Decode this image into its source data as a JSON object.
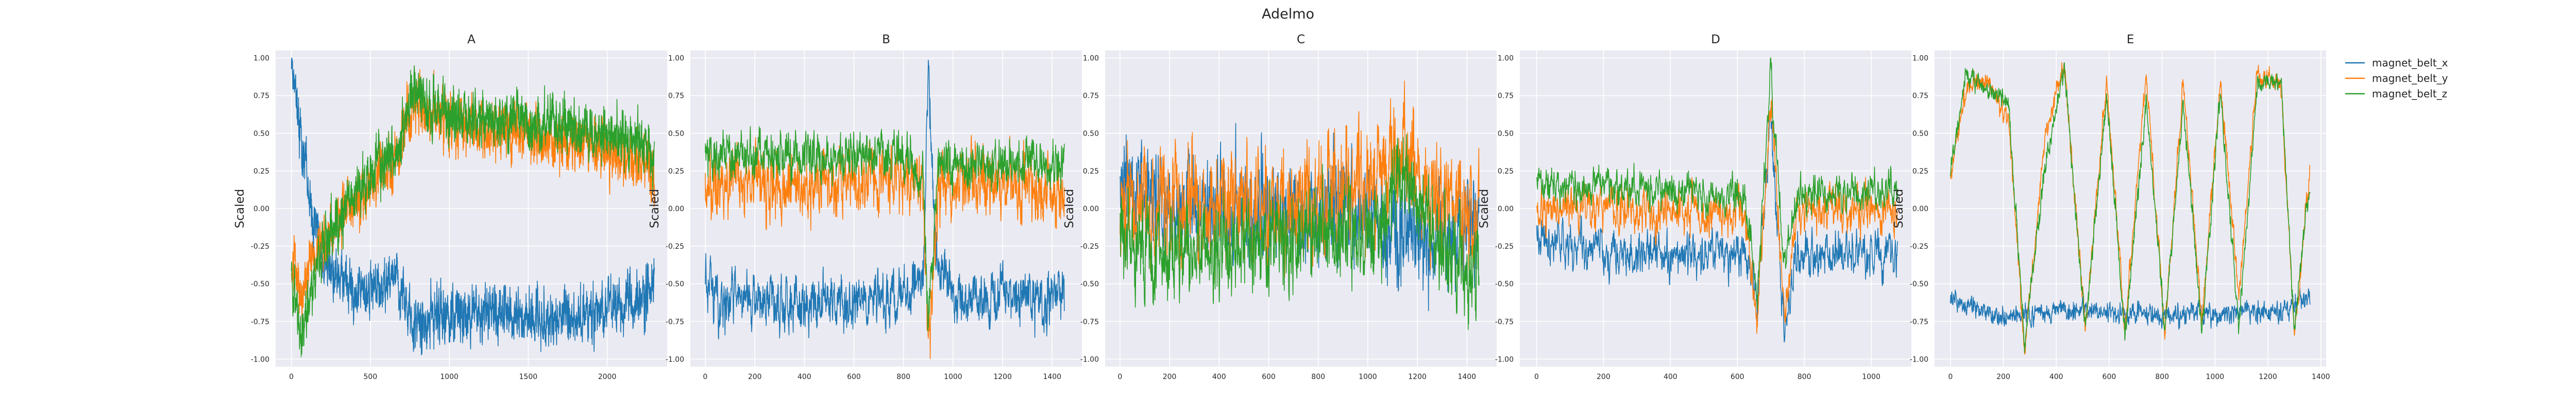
{
  "chart_data": {
    "type": "line",
    "title": "Adelmo",
    "series_names": [
      "magnet_belt_x",
      "magnet_belt_y",
      "magnet_belt_z"
    ],
    "colors": [
      "#1f77b4",
      "#ff7f0e",
      "#2ca02c"
    ],
    "legend_position": "right",
    "grid": true,
    "background": "#eaeaf2",
    "panels": [
      {
        "title": "A",
        "ylabel": "Scaled",
        "xlim": [
          -100,
          2380
        ],
        "ylim": [
          -1.05,
          1.05
        ],
        "xticks": [
          0,
          500,
          1000,
          1500,
          2000
        ],
        "yticks": [
          -1.0,
          -0.75,
          -0.5,
          -0.25,
          0.0,
          0.25,
          0.5,
          0.75,
          1.0
        ],
        "n": 2300,
        "seed": 11,
        "series": [
          {
            "name": "magnet_belt_x",
            "anchors": [
              [
                0,
                0.97
              ],
              [
                30,
                0.75
              ],
              [
                100,
                0.15
              ],
              [
                200,
                -0.35
              ],
              [
                350,
                -0.5
              ],
              [
                500,
                -0.55
              ],
              [
                650,
                -0.45
              ],
              [
                710,
                -0.6
              ],
              [
                760,
                -0.75
              ],
              [
                1200,
                -0.7
              ],
              [
                1700,
                -0.72
              ],
              [
                2100,
                -0.65
              ],
              [
                2300,
                -0.5
              ]
            ],
            "noise": 0.13
          },
          {
            "name": "magnet_belt_y",
            "anchors": [
              [
                0,
                -0.3
              ],
              [
                60,
                -0.55
              ],
              [
                200,
                -0.2
              ],
              [
                400,
                0.05
              ],
              [
                550,
                0.2
              ],
              [
                680,
                0.35
              ],
              [
                760,
                0.72
              ],
              [
                1000,
                0.55
              ],
              [
                1500,
                0.48
              ],
              [
                2000,
                0.38
              ],
              [
                2250,
                0.3
              ],
              [
                2300,
                0.15
              ]
            ],
            "noise": 0.13
          },
          {
            "name": "magnet_belt_z",
            "anchors": [
              [
                0,
                -0.5
              ],
              [
                60,
                -0.85
              ],
              [
                200,
                -0.25
              ],
              [
                400,
                0.1
              ],
              [
                550,
                0.3
              ],
              [
                680,
                0.38
              ],
              [
                760,
                0.78
              ],
              [
                1000,
                0.62
              ],
              [
                1500,
                0.58
              ],
              [
                2000,
                0.5
              ],
              [
                2250,
                0.4
              ],
              [
                2300,
                0.3
              ]
            ],
            "noise": 0.13
          }
        ]
      },
      {
        "title": "B",
        "ylabel": "Scaled",
        "xlim": [
          -60,
          1520
        ],
        "ylim": [
          -1.05,
          1.05
        ],
        "xticks": [
          0,
          200,
          400,
          600,
          800,
          1000,
          1200,
          1400
        ],
        "yticks": [
          -1.0,
          -0.75,
          -0.5,
          -0.25,
          0.0,
          0.25,
          0.5,
          0.75,
          1.0
        ],
        "n": 1450,
        "seed": 23,
        "series": [
          {
            "name": "magnet_belt_x",
            "anchors": [
              [
                0,
                -0.4
              ],
              [
                50,
                -0.6
              ],
              [
                400,
                -0.65
              ],
              [
                800,
                -0.6
              ],
              [
                880,
                -0.45
              ],
              [
                900,
                0.95
              ],
              [
                930,
                -0.3
              ],
              [
                1000,
                -0.6
              ],
              [
                1400,
                -0.6
              ],
              [
                1450,
                -0.5
              ]
            ],
            "noise": 0.13
          },
          {
            "name": "magnet_belt_y",
            "anchors": [
              [
                0,
                0.1
              ],
              [
                100,
                0.2
              ],
              [
                400,
                0.15
              ],
              [
                800,
                0.2
              ],
              [
                880,
                0.1
              ],
              [
                900,
                -0.9
              ],
              [
                940,
                0.1
              ],
              [
                1100,
                0.2
              ],
              [
                1450,
                0.1
              ]
            ],
            "noise": 0.16
          },
          {
            "name": "magnet_belt_z",
            "anchors": [
              [
                0,
                0.35
              ],
              [
                300,
                0.35
              ],
              [
                800,
                0.35
              ],
              [
                880,
                0.2
              ],
              [
                900,
                -0.8
              ],
              [
                940,
                0.3
              ],
              [
                1450,
                0.3
              ]
            ],
            "noise": 0.11
          }
        ]
      },
      {
        "title": "C",
        "ylabel": "Scaled",
        "xlim": [
          -60,
          1520
        ],
        "ylim": [
          -1.05,
          1.05
        ],
        "xticks": [
          0,
          200,
          400,
          600,
          800,
          1000,
          1200,
          1400
        ],
        "yticks": [
          -1.0,
          -0.75,
          -0.5,
          -0.25,
          0.0,
          0.25,
          0.5,
          0.75,
          1.0
        ],
        "n": 1450,
        "seed": 37,
        "series": [
          {
            "name": "magnet_belt_x",
            "anchors": [
              [
                0,
                0.2
              ],
              [
                200,
                0.0
              ],
              [
                600,
                0.0
              ],
              [
                900,
                0.0
              ],
              [
                1100,
                -0.1
              ],
              [
                1250,
                -0.2
              ],
              [
                1450,
                -0.1
              ]
            ],
            "noise": 0.24
          },
          {
            "name": "magnet_belt_y",
            "anchors": [
              [
                0,
                0.0
              ],
              [
                300,
                0.05
              ],
              [
                700,
                0.0
              ],
              [
                1000,
                0.15
              ],
              [
                1150,
                0.35
              ],
              [
                1300,
                0.0
              ],
              [
                1450,
                -0.1
              ]
            ],
            "noise": 0.26
          },
          {
            "name": "magnet_belt_z",
            "anchors": [
              [
                0,
                -0.25
              ],
              [
                300,
                -0.3
              ],
              [
                700,
                -0.2
              ],
              [
                1000,
                -0.15
              ],
              [
                1150,
                0.2
              ],
              [
                1300,
                -0.3
              ],
              [
                1450,
                -0.4
              ]
            ],
            "noise": 0.22
          }
        ]
      },
      {
        "title": "D",
        "ylabel": "Scaled",
        "xlim": [
          -50,
          1120
        ],
        "ylim": [
          -1.05,
          1.05
        ],
        "xticks": [
          0,
          200,
          400,
          600,
          800,
          1000
        ],
        "yticks": [
          -1.0,
          -0.75,
          -0.5,
          -0.25,
          0.0,
          0.25,
          0.5,
          0.75,
          1.0
        ],
        "n": 1080,
        "seed": 51,
        "series": [
          {
            "name": "magnet_belt_x",
            "anchors": [
              [
                0,
                -0.2
              ],
              [
                200,
                -0.3
              ],
              [
                500,
                -0.3
              ],
              [
                620,
                -0.25
              ],
              [
                660,
                -0.65
              ],
              [
                700,
                0.6
              ],
              [
                740,
                -0.8
              ],
              [
                780,
                -0.3
              ],
              [
                1080,
                -0.3
              ]
            ],
            "noise": 0.11
          },
          {
            "name": "magnet_belt_y",
            "anchors": [
              [
                0,
                0.0
              ],
              [
                200,
                0.0
              ],
              [
                500,
                -0.05
              ],
              [
                620,
                0.0
              ],
              [
                660,
                -0.75
              ],
              [
                700,
                0.8
              ],
              [
                740,
                -0.7
              ],
              [
                780,
                0.0
              ],
              [
                1080,
                0.0
              ]
            ],
            "noise": 0.11
          },
          {
            "name": "magnet_belt_z",
            "anchors": [
              [
                0,
                0.15
              ],
              [
                200,
                0.15
              ],
              [
                500,
                0.1
              ],
              [
                620,
                0.1
              ],
              [
                660,
                -0.6
              ],
              [
                700,
                0.9
              ],
              [
                740,
                -0.4
              ],
              [
                780,
                0.1
              ],
              [
                1080,
                0.12
              ]
            ],
            "noise": 0.09
          }
        ]
      },
      {
        "title": "E",
        "ylabel": "Scaled",
        "xlim": [
          -60,
          1420
        ],
        "ylim": [
          -1.05,
          1.05
        ],
        "xticks": [
          0,
          200,
          400,
          600,
          800,
          1000,
          1200,
          1400
        ],
        "yticks": [
          -1.0,
          -0.75,
          -0.5,
          -0.25,
          0.0,
          0.25,
          0.5,
          0.75,
          1.0
        ],
        "n": 1360,
        "seed": 67,
        "series": [
          {
            "name": "magnet_belt_x",
            "anchors": [
              [
                0,
                -0.6
              ],
              [
                200,
                -0.72
              ],
              [
                400,
                -0.68
              ],
              [
                700,
                -0.7
              ],
              [
                1000,
                -0.7
              ],
              [
                1250,
                -0.68
              ],
              [
                1360,
                -0.6
              ]
            ],
            "noise": 0.05
          },
          {
            "name": "magnet_belt_y",
            "anchors": [
              [
                0,
                0.2
              ],
              [
                60,
                0.8
              ],
              [
                130,
                0.85
              ],
              [
                220,
                0.6
              ],
              [
                280,
                -0.95
              ],
              [
                360,
                0.5
              ],
              [
                430,
                0.95
              ],
              [
                510,
                -0.8
              ],
              [
                590,
                0.85
              ],
              [
                660,
                -0.8
              ],
              [
                740,
                0.9
              ],
              [
                810,
                -0.8
              ],
              [
                880,
                0.85
              ],
              [
                950,
                -0.75
              ],
              [
                1020,
                0.85
              ],
              [
                1090,
                -0.6
              ],
              [
                1160,
                0.9
              ],
              [
                1250,
                0.8
              ],
              [
                1300,
                -0.85
              ],
              [
                1360,
                0.3
              ]
            ],
            "noise": 0.05
          },
          {
            "name": "magnet_belt_z",
            "anchors": [
              [
                0,
                0.25
              ],
              [
                60,
                0.9
              ],
              [
                130,
                0.8
              ],
              [
                220,
                0.7
              ],
              [
                280,
                -0.9
              ],
              [
                360,
                0.3
              ],
              [
                430,
                0.95
              ],
              [
                510,
                -0.8
              ],
              [
                590,
                0.75
              ],
              [
                660,
                -0.85
              ],
              [
                740,
                0.7
              ],
              [
                810,
                -0.8
              ],
              [
                880,
                0.7
              ],
              [
                950,
                -0.8
              ],
              [
                1020,
                0.75
              ],
              [
                1090,
                -0.8
              ],
              [
                1160,
                0.8
              ],
              [
                1250,
                0.85
              ],
              [
                1300,
                -0.8
              ],
              [
                1360,
                0.2
              ]
            ],
            "noise": 0.05
          }
        ]
      }
    ]
  }
}
